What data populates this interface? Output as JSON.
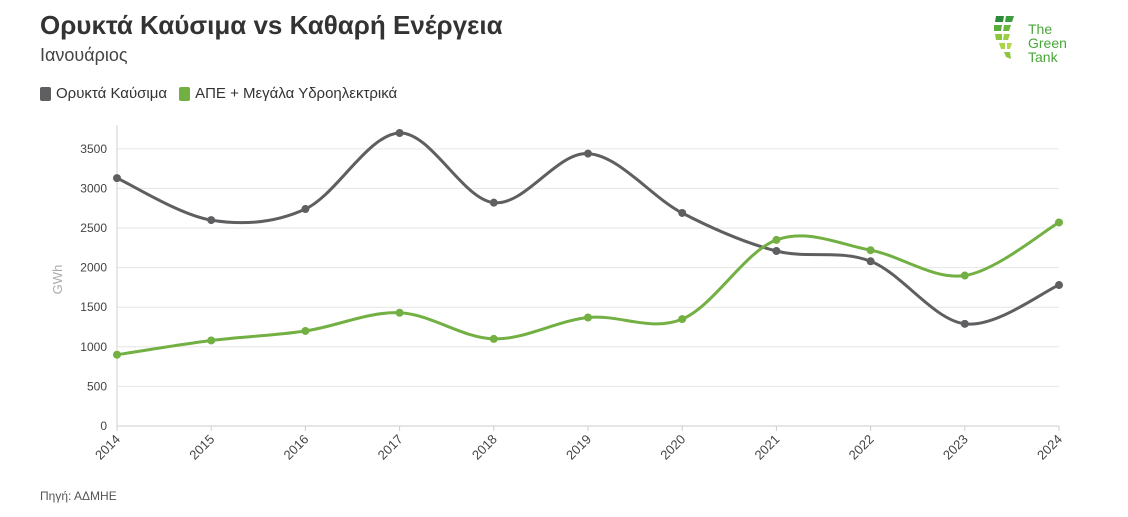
{
  "header": {
    "title": "Ορυκτά Καύσιμα vs Καθαρή Ενέργεια",
    "subtitle": "Ιανουάριος"
  },
  "legend": [
    {
      "label": "Ορυκτά Καύσιμα",
      "color": "#5f5e60"
    },
    {
      "label": "ΑΠΕ + Μεγάλα Υδροηλεκτρικά",
      "color": "#72b043"
    }
  ],
  "logo": {
    "line1": "The",
    "line2": "Green",
    "line3": "Tank",
    "icon": "green-tank-logo-icon"
  },
  "source": "Πηγή: ΑΔΜΗΕ",
  "chart_data": {
    "type": "line",
    "x": [
      "2014",
      "2015",
      "2016",
      "2017",
      "2018",
      "2019",
      "2020",
      "2021",
      "2022",
      "2023",
      "2024"
    ],
    "ylabel": "GWh",
    "xlabel": "",
    "ylim": [
      0,
      3700
    ],
    "yticks": [
      0,
      500,
      1000,
      1500,
      2000,
      2500,
      3000,
      3500
    ],
    "grid": true,
    "legend_position": "top-left",
    "series": [
      {
        "name": "Ορυκτά Καύσιμα",
        "color": "#5f5e60",
        "values": [
          3130,
          2600,
          2740,
          3700,
          2820,
          3440,
          2690,
          2210,
          2080,
          1290,
          1780
        ]
      },
      {
        "name": "ΑΠΕ + Μεγάλα Υδροηλεκτρικά",
        "color": "#72b043",
        "values": [
          900,
          1080,
          1200,
          1430,
          1100,
          1370,
          1350,
          2350,
          2220,
          1900,
          2570
        ]
      }
    ]
  }
}
